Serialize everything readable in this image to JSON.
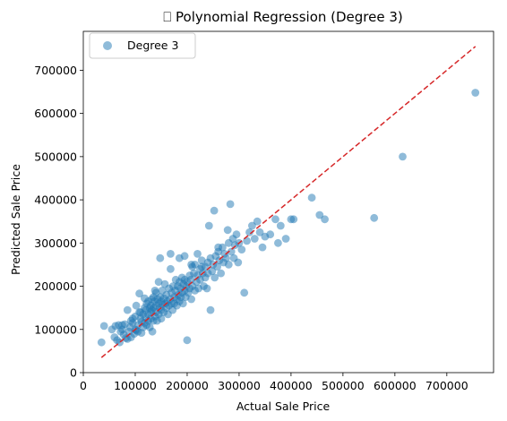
{
  "chart_data": {
    "type": "scatter",
    "title": "⎕ Polynomial Regression (Degree 3)",
    "xlabel": "Actual Sale Price",
    "ylabel": "Predicted Sale Price",
    "xlim": [
      0,
      790000
    ],
    "ylim": [
      0,
      790000
    ],
    "xticks": [
      0,
      100000,
      200000,
      300000,
      400000,
      500000,
      600000,
      700000
    ],
    "yticks": [
      0,
      100000,
      200000,
      300000,
      400000,
      500000,
      600000,
      700000
    ],
    "tick_labels_x": [
      "0",
      "100000",
      "200000",
      "300000",
      "400000",
      "500000",
      "600000",
      "700000"
    ],
    "tick_labels_y": [
      "0",
      "100000",
      "200000",
      "300000",
      "400000",
      "500000",
      "600000",
      "700000"
    ],
    "grid": false,
    "legend": {
      "placement": "top-left",
      "entries": [
        "Degree 3"
      ]
    },
    "colors": {
      "points": "#1f77b4",
      "reference_line": "#d62728"
    },
    "reference_line": {
      "style": "dashed",
      "from": [
        35000,
        35000
      ],
      "to": [
        755000,
        755000
      ]
    },
    "series": [
      {
        "name": "Degree 3",
        "points": [
          [
            35000,
            70000
          ],
          [
            40000,
            108000
          ],
          [
            55000,
            100000
          ],
          [
            60000,
            82000
          ],
          [
            62000,
            108000
          ],
          [
            65000,
            75000
          ],
          [
            68000,
            110000
          ],
          [
            70000,
            70000
          ],
          [
            72000,
            95000
          ],
          [
            75000,
            100000
          ],
          [
            78000,
            88000
          ],
          [
            80000,
            112000
          ],
          [
            82000,
            80000
          ],
          [
            85000,
            78000
          ],
          [
            85000,
            145000
          ],
          [
            88000,
            95000
          ],
          [
            90000,
            105000
          ],
          [
            92000,
            82000
          ],
          [
            95000,
            115000
          ],
          [
            95000,
            125000
          ],
          [
            98000,
            90000
          ],
          [
            100000,
            130000
          ],
          [
            100000,
            100000
          ],
          [
            102000,
            155000
          ],
          [
            105000,
            110000
          ],
          [
            105000,
            95000
          ],
          [
            108000,
            183000
          ],
          [
            110000,
            125000
          ],
          [
            110000,
            140000
          ],
          [
            112000,
            118000
          ],
          [
            115000,
            105000
          ],
          [
            115000,
            135000
          ],
          [
            118000,
            115000
          ],
          [
            118000,
            150000
          ],
          [
            120000,
            128000
          ],
          [
            120000,
            145000
          ],
          [
            122000,
            110000
          ],
          [
            122000,
            160000
          ],
          [
            125000,
            135000
          ],
          [
            125000,
            120000
          ],
          [
            125000,
            165000
          ],
          [
            128000,
            150000
          ],
          [
            128000,
            105000
          ],
          [
            130000,
            140000
          ],
          [
            130000,
            125000
          ],
          [
            130000,
            155000
          ],
          [
            132000,
            145000
          ],
          [
            132000,
            170000
          ],
          [
            133000,
            95000
          ],
          [
            135000,
            150000
          ],
          [
            135000,
            120000
          ],
          [
            135000,
            175000
          ],
          [
            137000,
            165000
          ],
          [
            138000,
            130000
          ],
          [
            140000,
            155000
          ],
          [
            140000,
            140000
          ],
          [
            140000,
            185000
          ],
          [
            142000,
            120000
          ],
          [
            143000,
            170000
          ],
          [
            145000,
            160000
          ],
          [
            145000,
            135000
          ],
          [
            145000,
            210000
          ],
          [
            147000,
            150000
          ],
          [
            148000,
            175000
          ],
          [
            150000,
            165000
          ],
          [
            150000,
            145000
          ],
          [
            150000,
            125000
          ],
          [
            152000,
            190000
          ],
          [
            153000,
            158000
          ],
          [
            155000,
            172000
          ],
          [
            155000,
            140000
          ],
          [
            157000,
            205000
          ],
          [
            158000,
            160000
          ],
          [
            160000,
            150000
          ],
          [
            160000,
            180000
          ],
          [
            162000,
            165000
          ],
          [
            163000,
            135000
          ],
          [
            165000,
            195000
          ],
          [
            165000,
            155000
          ],
          [
            167000,
            170000
          ],
          [
            168000,
            240000
          ],
          [
            170000,
            160000
          ],
          [
            170000,
            185000
          ],
          [
            172000,
            145000
          ],
          [
            173000,
            200000
          ],
          [
            175000,
            175000
          ],
          [
            175000,
            160000
          ],
          [
            177000,
            190000
          ],
          [
            178000,
            215000
          ],
          [
            180000,
            170000
          ],
          [
            180000,
            155000
          ],
          [
            182000,
            200000
          ],
          [
            183000,
            180000
          ],
          [
            185000,
            210000
          ],
          [
            185000,
            165000
          ],
          [
            187000,
            195000
          ],
          [
            188000,
            175000
          ],
          [
            190000,
            220000
          ],
          [
            190000,
            185000
          ],
          [
            192000,
            160000
          ],
          [
            193000,
            205000
          ],
          [
            195000,
            190000
          ],
          [
            195000,
            215000
          ],
          [
            197000,
            175000
          ],
          [
            198000,
            200000
          ],
          [
            200000,
            75000
          ],
          [
            200000,
            210000
          ],
          [
            202000,
            185000
          ],
          [
            205000,
            225000
          ],
          [
            205000,
            195000
          ],
          [
            207000,
            215000
          ],
          [
            208000,
            170000
          ],
          [
            210000,
            245000
          ],
          [
            210000,
            200000
          ],
          [
            213000,
            230000
          ],
          [
            215000,
            190000
          ],
          [
            215000,
            250000
          ],
          [
            218000,
            210000
          ],
          [
            220000,
            275000
          ],
          [
            220000,
            225000
          ],
          [
            222000,
            195000
          ],
          [
            225000,
            240000
          ],
          [
            225000,
            215000
          ],
          [
            228000,
            260000
          ],
          [
            230000,
            230000
          ],
          [
            232000,
            200000
          ],
          [
            235000,
            245000
          ],
          [
            235000,
            220000
          ],
          [
            238000,
            195000
          ],
          [
            240000,
            255000
          ],
          [
            240000,
            230000
          ],
          [
            242000,
            340000
          ],
          [
            245000,
            145000
          ],
          [
            245000,
            265000
          ],
          [
            248000,
            235000
          ],
          [
            250000,
            250000
          ],
          [
            252000,
            375000
          ],
          [
            253000,
            220000
          ],
          [
            255000,
            270000
          ],
          [
            258000,
            245000
          ],
          [
            260000,
            280000
          ],
          [
            262000,
            260000
          ],
          [
            265000,
            230000
          ],
          [
            268000,
            290000
          ],
          [
            270000,
            255000
          ],
          [
            272000,
            275000
          ],
          [
            275000,
            265000
          ],
          [
            278000,
            330000
          ],
          [
            280000,
            300000
          ],
          [
            280000,
            250000
          ],
          [
            283000,
            390000
          ],
          [
            285000,
            280000
          ],
          [
            288000,
            310000
          ],
          [
            290000,
            265000
          ],
          [
            292000,
            295000
          ],
          [
            295000,
            320000
          ],
          [
            298000,
            255000
          ],
          [
            300000,
            300000
          ],
          [
            305000,
            285000
          ],
          [
            310000,
            185000
          ],
          [
            315000,
            305000
          ],
          [
            320000,
            325000
          ],
          [
            325000,
            340000
          ],
          [
            330000,
            310000
          ],
          [
            335000,
            350000
          ],
          [
            340000,
            325000
          ],
          [
            345000,
            290000
          ],
          [
            350000,
            315000
          ],
          [
            360000,
            320000
          ],
          [
            370000,
            355000
          ],
          [
            375000,
            300000
          ],
          [
            380000,
            340000
          ],
          [
            390000,
            310000
          ],
          [
            400000,
            355000
          ],
          [
            405000,
            355000
          ],
          [
            440000,
            405000
          ],
          [
            455000,
            365000
          ],
          [
            465000,
            355000
          ],
          [
            560000,
            358000
          ],
          [
            615000,
            500000
          ],
          [
            755000,
            648000
          ],
          [
            148000,
            265000
          ],
          [
            168000,
            275000
          ],
          [
            185000,
            265000
          ],
          [
            195000,
            270000
          ],
          [
            208000,
            250000
          ],
          [
            228000,
            245000
          ],
          [
            260000,
            290000
          ],
          [
            118000,
            172000
          ],
          [
            138000,
            190000
          ],
          [
            108000,
            140000
          ],
          [
            92000,
            120000
          ],
          [
            102000,
            98000
          ],
          [
            112000,
            92000
          ],
          [
            75000,
            110000
          ]
        ]
      }
    ]
  }
}
